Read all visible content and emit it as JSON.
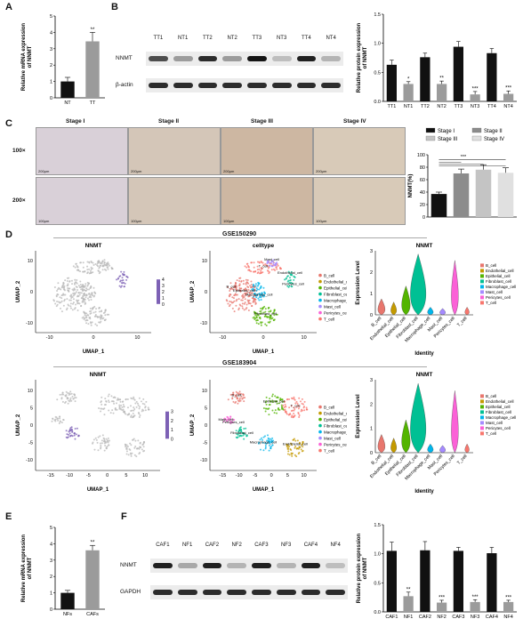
{
  "panels": {
    "A": {
      "letter": "A",
      "chart_data": {
        "type": "bar",
        "categories": [
          "NT",
          "TT"
        ],
        "values": [
          1.0,
          3.45
        ],
        "errors": [
          0.25,
          0.55
        ],
        "ylabel": "Relative mRNA expression of NNMT",
        "ylim": [
          0,
          5
        ],
        "yticks": [
          "0",
          "1",
          "2",
          "3",
          "4",
          "5"
        ],
        "annotations": [
          "",
          "**"
        ],
        "colors": [
          "#111111",
          "#9b9b9b"
        ]
      }
    },
    "B": {
      "letter": "B",
      "blot": {
        "lanes": [
          "TT1",
          "NT1",
          "TT2",
          "NT2",
          "TT3",
          "NT3",
          "TT4",
          "NT4"
        ],
        "rows": [
          "NNMT",
          "β-actin"
        ]
      },
      "chart_data": {
        "type": "bar",
        "categories": [
          "TT1",
          "NT1",
          "TT2",
          "NT2",
          "TT3",
          "NT3",
          "TT4",
          "NT4"
        ],
        "values": [
          0.63,
          0.3,
          0.76,
          0.3,
          0.94,
          0.12,
          0.83,
          0.13
        ],
        "errors": [
          0.08,
          0.04,
          0.07,
          0.05,
          0.09,
          0.05,
          0.08,
          0.05
        ],
        "ylabel": "Relative protein expression of NNMT",
        "ylim": [
          0,
          1.5
        ],
        "yticks": [
          "0.0",
          "0.5",
          "1.0",
          "1.5"
        ],
        "annotations": [
          "",
          "*",
          "",
          "**",
          "",
          "***",
          "",
          "***"
        ],
        "colors": [
          "#111111",
          "#9b9b9b",
          "#111111",
          "#9b9b9b",
          "#111111",
          "#9b9b9b",
          "#111111",
          "#9b9b9b"
        ]
      }
    },
    "C": {
      "letter": "C",
      "stages": [
        "Stage I",
        "Stage II",
        "Stage III",
        "Stage IV"
      ],
      "rows": [
        "100×",
        "200×"
      ],
      "scale_labels": [
        "200μm",
        "200μm",
        "200μm",
        "200μm",
        "100μm",
        "100μm",
        "100μm",
        "100μm"
      ],
      "chart_data": {
        "type": "bar",
        "categories": [
          "Stage I",
          "Stage II",
          "Stage III",
          "Stage IV"
        ],
        "values": [
          37,
          70,
          76,
          71
        ],
        "errors": [
          3,
          7,
          8,
          8
        ],
        "ylabel": "NNMT(%)",
        "ylim": [
          0,
          100
        ],
        "yticks": [
          "0",
          "20",
          "40",
          "60",
          "80",
          "100"
        ],
        "annotations": [
          "***"
        ],
        "legend": [
          "Stage I",
          "Stage II",
          "Stage III",
          "Stage IV"
        ],
        "colors": [
          "#111111",
          "#8c8c8c",
          "#c4c4c4",
          "#e0e0e0"
        ]
      }
    },
    "D": {
      "letter": "D",
      "top": {
        "title": "GSE150290",
        "umap1_title": "NNMT",
        "umap2_title": "celltype",
        "violin_title": "NNMT",
        "colorbar": [
          "4",
          "3",
          "2",
          "1",
          "0"
        ],
        "xlabel": "UMAP_1",
        "ylabel": "UMAP_2",
        "xticks": [
          "-10",
          "0",
          "10"
        ],
        "yticks": [
          "10",
          "0",
          "-10"
        ],
        "umap_labels": [
          "Mast_cell",
          "Endothelial_cell",
          "Pericytes_cell",
          "Fibroblast_cell",
          "Epithelial_cell",
          "Macrophage_cell",
          "B_cell",
          "T_cell"
        ]
      },
      "bottom": {
        "title": "GSE183904",
        "umap1_title": "NNMT",
        "violin_title": "NNMT",
        "colorbar": [
          "3",
          "2",
          "1",
          "0"
        ],
        "xlabel": "UMAP_1",
        "ylabel": "UMAP_2",
        "xticks": [
          "-15",
          "-10",
          "-5",
          "0",
          "5",
          "10"
        ],
        "yticks": [
          "10",
          "5",
          "0",
          "-5",
          "-10"
        ],
        "umap_labels": [
          "B_cell",
          "Endothelial_cell",
          "Epithelial_cell",
          "Fibroblast_cell",
          "Macrophage_cell",
          "Mast_cell",
          "Pericytes_cell",
          "T_cell"
        ]
      },
      "cell_types": [
        "B_cell",
        "Endothelial_cell",
        "Epithelial_cell",
        "Fibroblast_cell",
        "Macrophage_cell",
        "Mast_cell",
        "Pericytes_cell",
        "T_cell"
      ],
      "cell_colors": [
        "#e8766d",
        "#c49a00",
        "#53b400",
        "#00c094",
        "#00b6eb",
        "#a58aff",
        "#fb61d7",
        "#f8766d"
      ],
      "violin_ylabel": "Expression Level",
      "violin_xlabel": "Identity",
      "violin_yticks": [
        "0",
        "1",
        "2",
        "3"
      ]
    },
    "E": {
      "letter": "E",
      "chart_data": {
        "type": "bar",
        "categories": [
          "NFs",
          "CAFs"
        ],
        "values": [
          1.0,
          3.6
        ],
        "errors": [
          0.15,
          0.3
        ],
        "ylabel": "Relative mRNA expression of NNMT",
        "ylim": [
          0,
          5
        ],
        "yticks": [
          "0",
          "1",
          "2",
          "3",
          "4",
          "5"
        ],
        "annotations": [
          "",
          "**"
        ],
        "colors": [
          "#111111",
          "#9b9b9b"
        ]
      }
    },
    "F": {
      "letter": "F",
      "blot": {
        "lanes": [
          "CAF1",
          "NF1",
          "CAF2",
          "NF2",
          "CAF3",
          "NF3",
          "CAF4",
          "NF4"
        ],
        "rows": [
          "NNMT",
          "GAPDH"
        ]
      },
      "chart_data": {
        "type": "bar",
        "categories": [
          "CAF1",
          "NF1",
          "CAF2",
          "NF2",
          "CAF3",
          "NF3",
          "CAF4",
          "NF4"
        ],
        "values": [
          1.05,
          0.27,
          1.06,
          0.16,
          1.05,
          0.17,
          1.01,
          0.17
        ],
        "errors": [
          0.15,
          0.07,
          0.15,
          0.04,
          0.06,
          0.04,
          0.1,
          0.03
        ],
        "ylabel": "Relative protein expression of NNMT",
        "ylim": [
          0,
          1.5
        ],
        "yticks": [
          "0.0",
          "0.5",
          "1.0",
          "1.5"
        ],
        "annotations": [
          "",
          "**",
          "",
          "***",
          "",
          "***",
          "",
          "***"
        ],
        "colors": [
          "#111111",
          "#9b9b9b",
          "#111111",
          "#9b9b9b",
          "#111111",
          "#9b9b9b",
          "#111111",
          "#9b9b9b"
        ]
      }
    }
  }
}
